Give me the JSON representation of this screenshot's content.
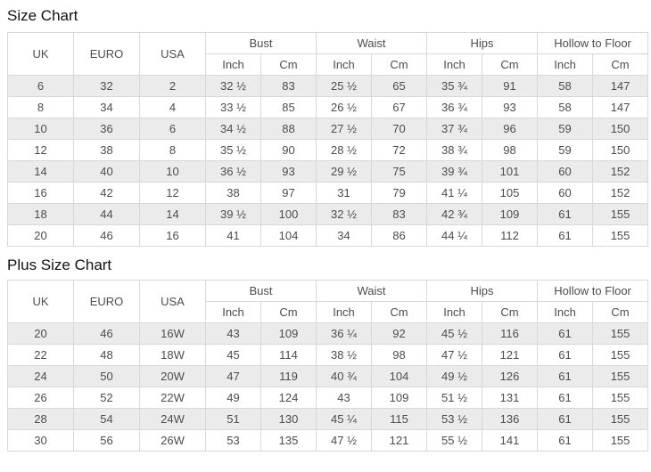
{
  "titles": {
    "size_chart": "Size Chart",
    "plus_size_chart": "Plus Size Chart"
  },
  "columns": {
    "uk": "UK",
    "euro": "EURO",
    "usa": "USA",
    "bust": "Bust",
    "waist": "Waist",
    "hips": "Hips",
    "hollow_to_floor": "Hollow to Floor",
    "inch": "Inch",
    "cm": "Cm"
  },
  "colors": {
    "stripe": "#ebebeb",
    "border": "#d8d8d8",
    "text": "#4d4d4d",
    "title": "#111111"
  },
  "chart_data": [
    {
      "type": "table",
      "title": "Size Chart",
      "column_headers": [
        "UK",
        "EURO",
        "USA",
        "Bust Inch",
        "Bust Cm",
        "Waist Inch",
        "Waist Cm",
        "Hips Inch",
        "Hips Cm",
        "Hollow to Floor Inch",
        "Hollow to Floor Cm"
      ],
      "rows": [
        [
          "6",
          "32",
          "2",
          "32 ½",
          "83",
          "25 ½",
          "65",
          "35 ¾",
          "91",
          "58",
          "147"
        ],
        [
          "8",
          "34",
          "4",
          "33 ½",
          "85",
          "26 ½",
          "67",
          "36 ¾",
          "93",
          "58",
          "147"
        ],
        [
          "10",
          "36",
          "6",
          "34 ½",
          "88",
          "27 ½",
          "70",
          "37 ¾",
          "96",
          "59",
          "150"
        ],
        [
          "12",
          "38",
          "8",
          "35 ½",
          "90",
          "28 ½",
          "72",
          "38 ¾",
          "98",
          "59",
          "150"
        ],
        [
          "14",
          "40",
          "10",
          "36 ½",
          "93",
          "29 ½",
          "75",
          "39 ¾",
          "101",
          "60",
          "152"
        ],
        [
          "16",
          "42",
          "12",
          "38",
          "97",
          "31",
          "79",
          "41 ¼",
          "105",
          "60",
          "152"
        ],
        [
          "18",
          "44",
          "14",
          "39 ½",
          "100",
          "32 ½",
          "83",
          "42 ¾",
          "109",
          "61",
          "155"
        ],
        [
          "20",
          "46",
          "16",
          "41",
          "104",
          "34",
          "86",
          "44 ¼",
          "112",
          "61",
          "155"
        ]
      ]
    },
    {
      "type": "table",
      "title": "Plus Size Chart",
      "column_headers": [
        "UK",
        "EURO",
        "USA",
        "Bust Inch",
        "Bust Cm",
        "Waist Inch",
        "Waist Cm",
        "Hips Inch",
        "Hips Cm",
        "Hollow to Floor Inch",
        "Hollow to Floor Cm"
      ],
      "rows": [
        [
          "20",
          "46",
          "16W",
          "43",
          "109",
          "36 ¼",
          "92",
          "45 ½",
          "116",
          "61",
          "155"
        ],
        [
          "22",
          "48",
          "18W",
          "45",
          "114",
          "38 ½",
          "98",
          "47 ½",
          "121",
          "61",
          "155"
        ],
        [
          "24",
          "50",
          "20W",
          "47",
          "119",
          "40 ¾",
          "104",
          "49 ½",
          "126",
          "61",
          "155"
        ],
        [
          "26",
          "52",
          "22W",
          "49",
          "124",
          "43",
          "109",
          "51 ½",
          "131",
          "61",
          "155"
        ],
        [
          "28",
          "54",
          "24W",
          "51",
          "130",
          "45 ¼",
          "115",
          "53 ½",
          "136",
          "61",
          "155"
        ],
        [
          "30",
          "56",
          "26W",
          "53",
          "135",
          "47 ½",
          "121",
          "55 ½",
          "141",
          "61",
          "155"
        ]
      ]
    }
  ]
}
